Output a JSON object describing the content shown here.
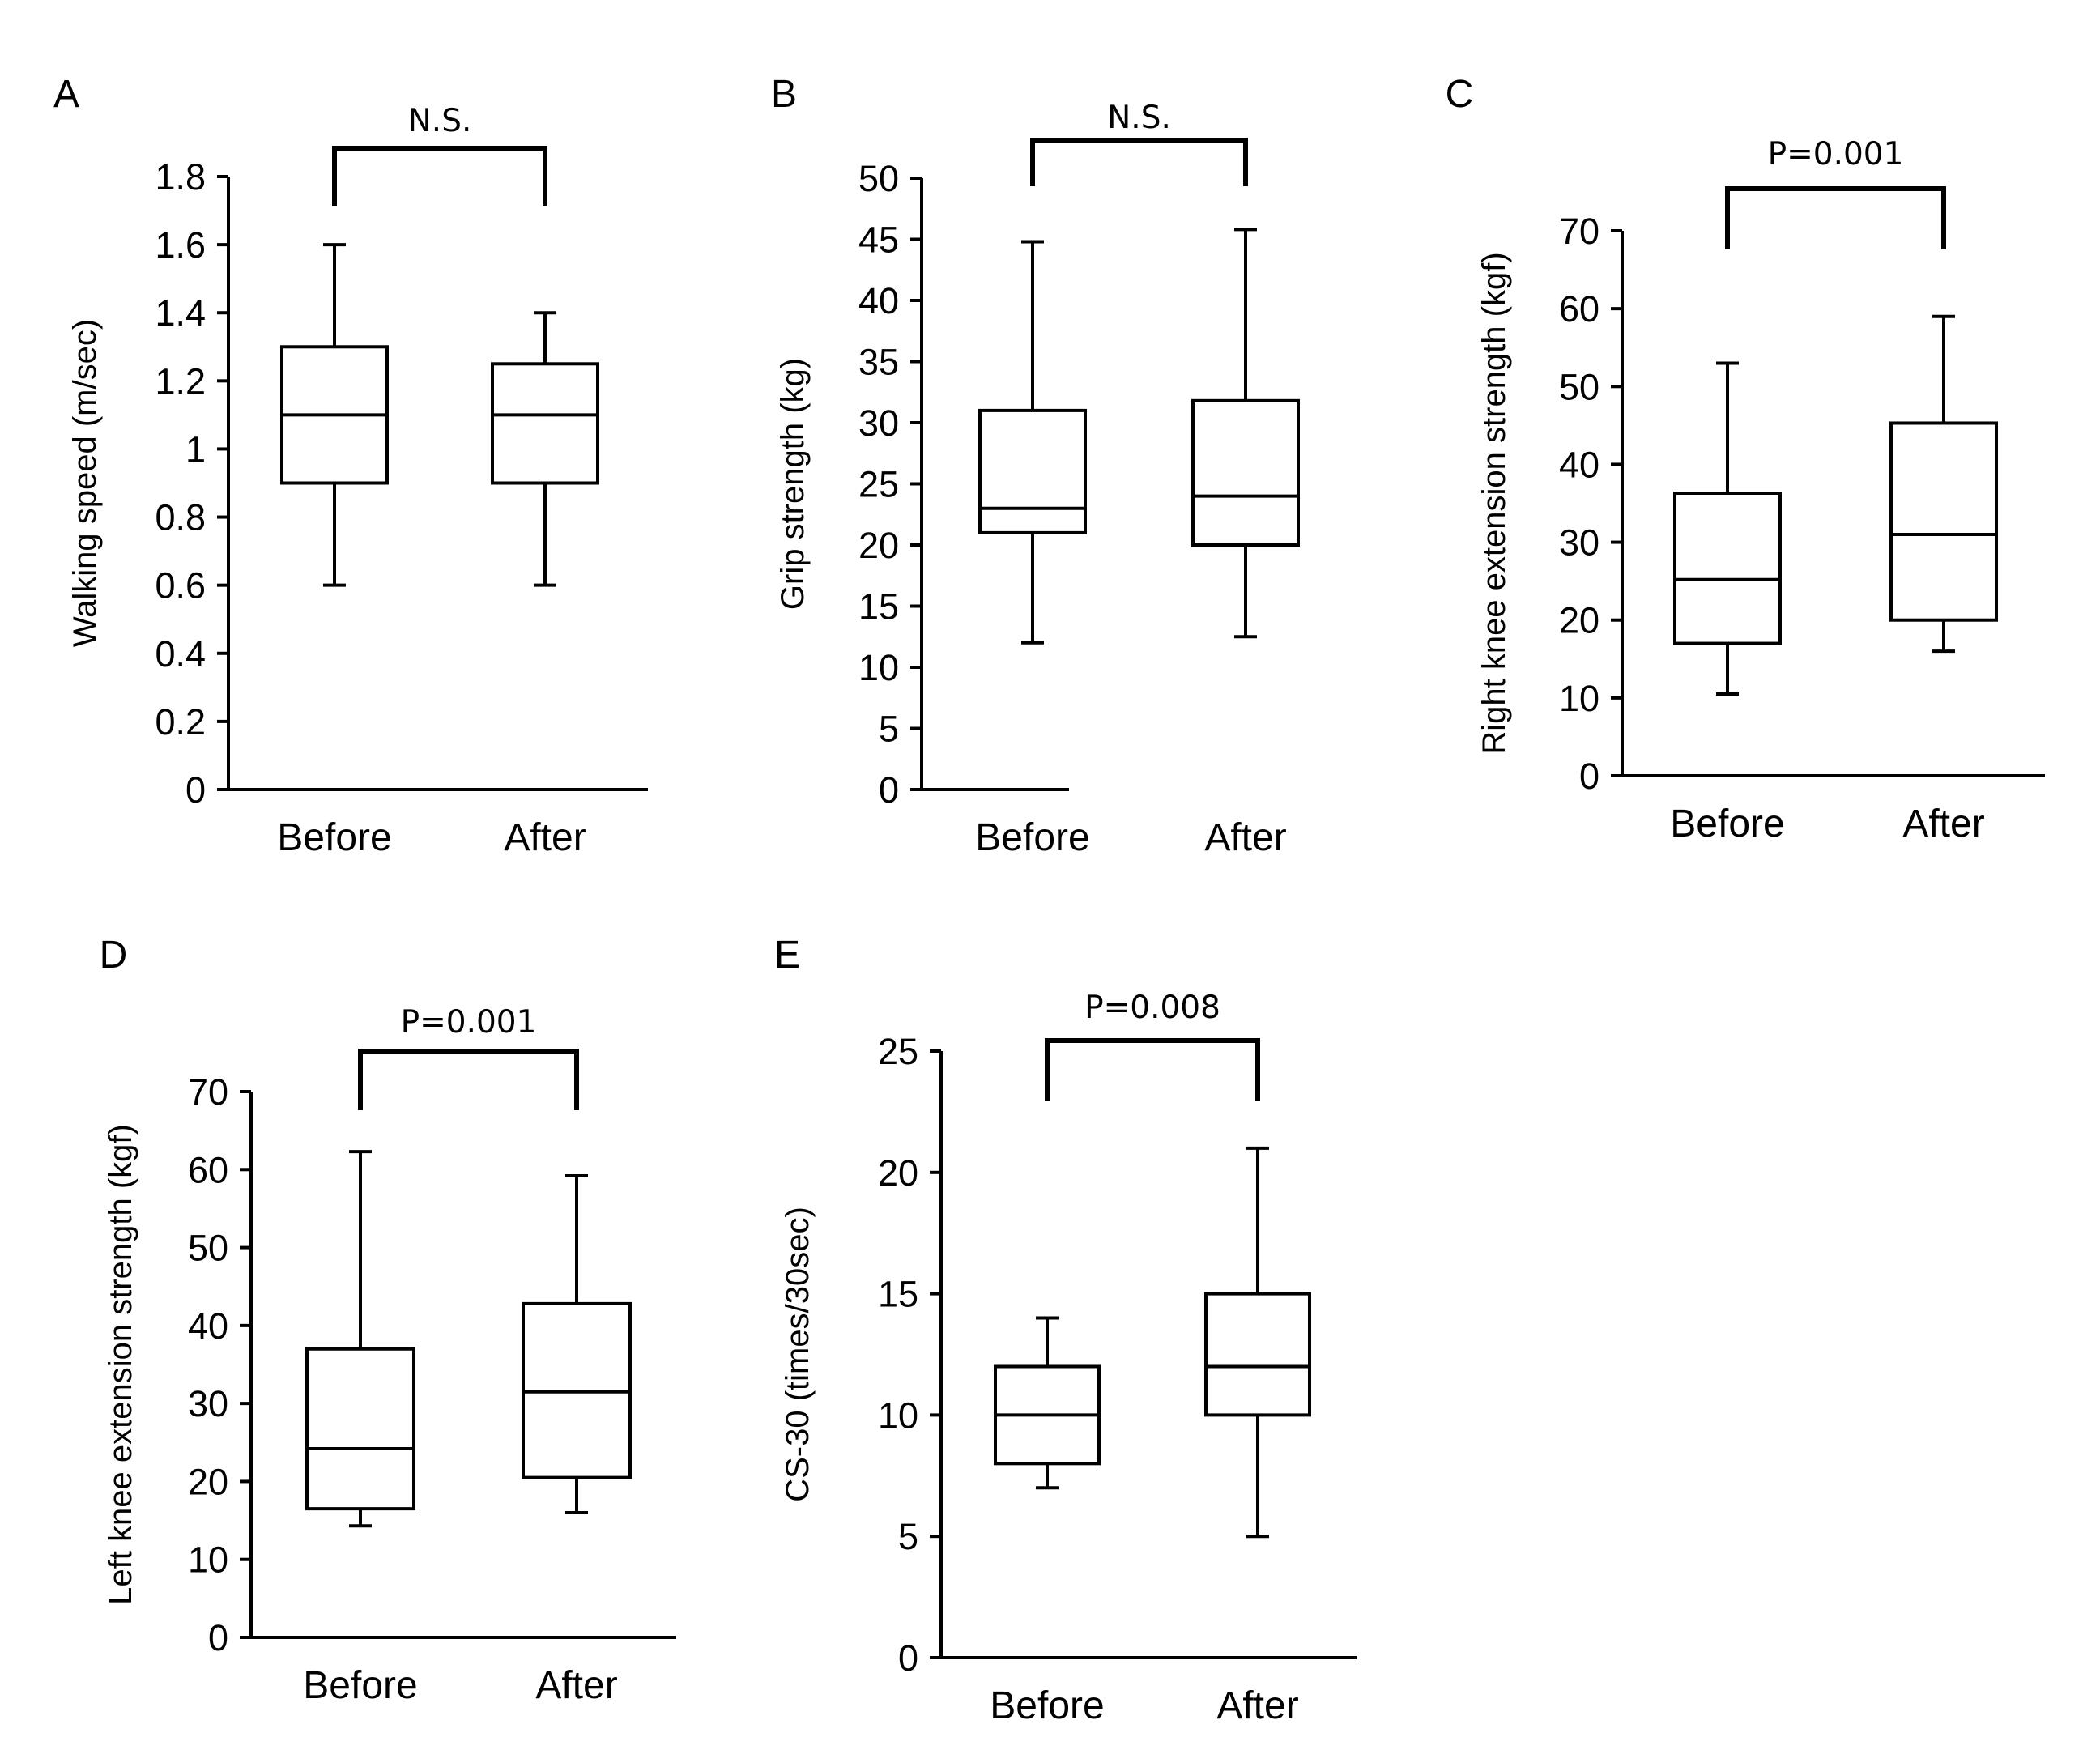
{
  "chart_data": [
    {
      "type": "boxplot",
      "panel": "A",
      "title": "",
      "ylabel": "Walking speed (m/sec)",
      "ylim": [
        0,
        1.8
      ],
      "yticks": [
        "0",
        "0.2",
        "0.4",
        "0.6",
        "0.8",
        "1",
        "1.2",
        "1.4",
        "1.6",
        "1.8"
      ],
      "categories": [
        "Before",
        "After"
      ],
      "boxes": [
        {
          "min": 0.6,
          "q1": 0.9,
          "median": 1.1,
          "q3": 1.3,
          "max": 1.6
        },
        {
          "min": 0.6,
          "q1": 0.9,
          "median": 1.1,
          "q3": 1.25,
          "max": 1.4
        }
      ],
      "significance": "N.S."
    },
    {
      "type": "boxplot",
      "panel": "B",
      "title": "",
      "ylabel": "Grip strength (kg)",
      "ylim": [
        0,
        50
      ],
      "yticks": [
        "0",
        "5",
        "10",
        "15",
        "20",
        "25",
        "30",
        "35",
        "40",
        "45",
        "50"
      ],
      "categories": [
        "Before",
        "After"
      ],
      "boxes": [
        {
          "min": 12,
          "q1": 21,
          "median": 23,
          "q3": 31,
          "max": 44.8
        },
        {
          "min": 12.5,
          "q1": 20,
          "median": 24,
          "q3": 31.8,
          "max": 45.8
        }
      ],
      "significance": "N.S."
    },
    {
      "type": "boxplot",
      "panel": "C",
      "title": "",
      "ylabel": "Right knee extension strength (kgf)",
      "ylim": [
        0,
        70
      ],
      "yticks": [
        "0",
        "10",
        "20",
        "30",
        "40",
        "50",
        "60",
        "70"
      ],
      "categories": [
        "Before",
        "After"
      ],
      "boxes": [
        {
          "min": 10.5,
          "q1": 17,
          "median": 25.2,
          "q3": 36.3,
          "max": 53
        },
        {
          "min": 16,
          "q1": 20,
          "median": 31,
          "q3": 45.3,
          "max": 59
        }
      ],
      "significance": "P=0.001"
    },
    {
      "type": "boxplot",
      "panel": "D",
      "title": "",
      "ylabel": "Left knee extension strength (kgf)",
      "ylim": [
        0,
        70
      ],
      "yticks": [
        "0",
        "10",
        "20",
        "30",
        "40",
        "50",
        "60",
        "70"
      ],
      "categories": [
        "Before",
        "After"
      ],
      "boxes": [
        {
          "min": 14.3,
          "q1": 16.5,
          "median": 24.2,
          "q3": 37,
          "max": 62.3
        },
        {
          "min": 16,
          "q1": 20.5,
          "median": 31.5,
          "q3": 42.8,
          "max": 59.2
        }
      ],
      "significance": "P=0.001"
    },
    {
      "type": "boxplot",
      "panel": "E",
      "title": "",
      "ylabel": "CS-30 (times/30sec)",
      "ylim": [
        0,
        25
      ],
      "yticks": [
        "0",
        "5",
        "10",
        "15",
        "20",
        "25"
      ],
      "categories": [
        "Before",
        "After"
      ],
      "boxes": [
        {
          "min": 7,
          "q1": 8,
          "median": 10,
          "q3": 12,
          "max": 14
        },
        {
          "min": 5,
          "q1": 10,
          "median": 12,
          "q3": 15,
          "max": 21
        }
      ],
      "significance": "P=0.008"
    }
  ]
}
